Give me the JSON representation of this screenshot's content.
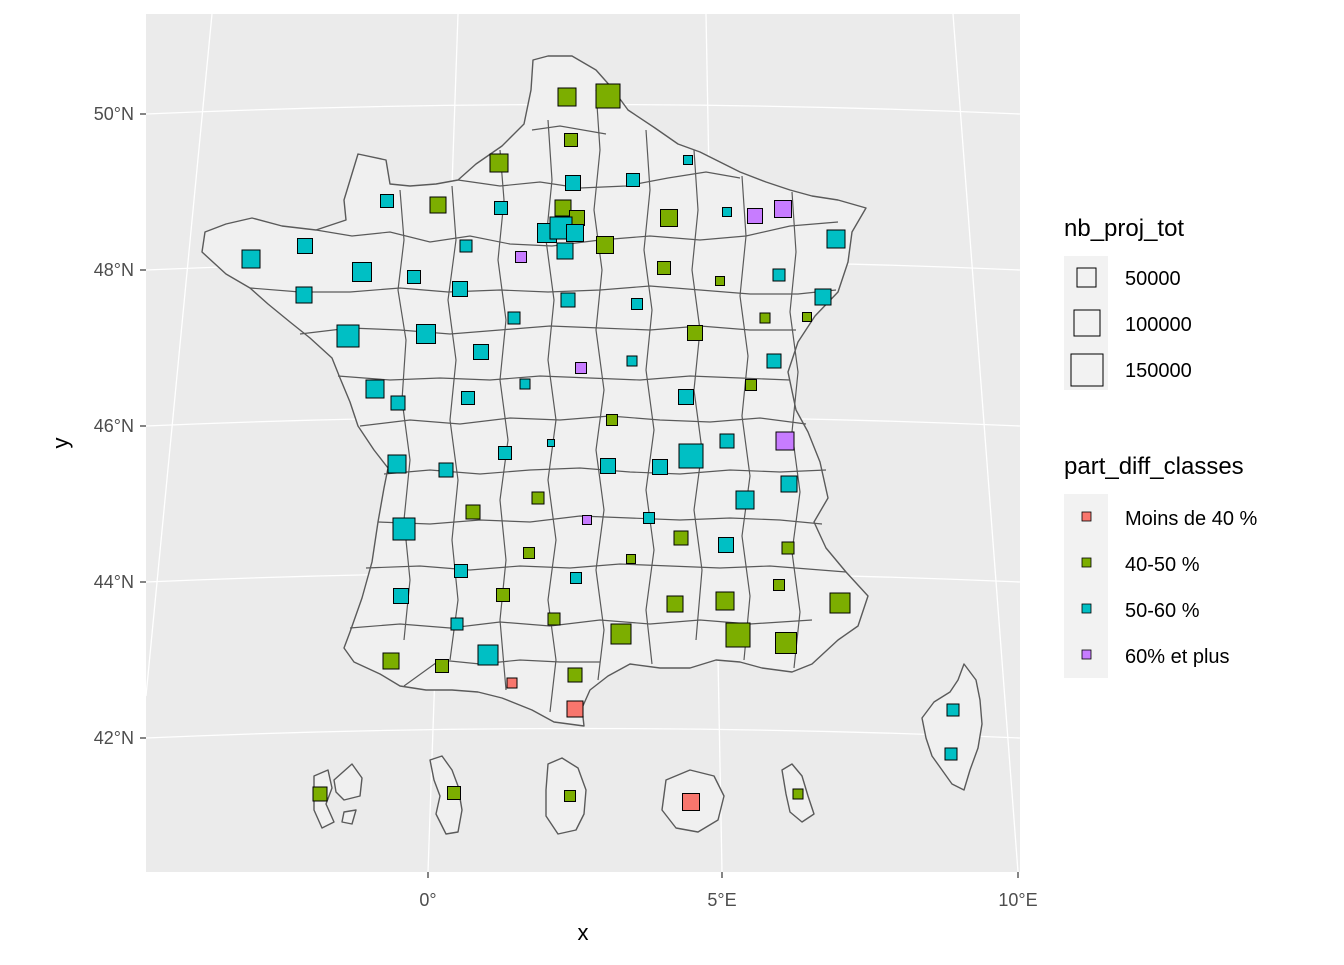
{
  "map": {
    "xlabel": "x",
    "ylabel": "y",
    "lat_ticks": [
      "50°N",
      "48°N",
      "46°N",
      "44°N",
      "42°N"
    ],
    "lon_ticks": [
      "0°",
      "5°E",
      "10°E"
    ],
    "colors": {
      "panel": "#ebebeb",
      "grid": "#ffffff",
      "land": "#f0f0f0",
      "border": "#5a5a5a",
      "Moins de 40 %": "#F8766D",
      "40-50 %": "#7CAE00",
      "50-60 %": "#00BFC4",
      "60% et plus": "#C77CFF"
    }
  },
  "legend_size": {
    "title": "nb_proj_tot",
    "labels": [
      "50000",
      "100000",
      "150000"
    ]
  },
  "legend_fill": {
    "title": "part_diff_classes",
    "labels": [
      "Moins de 40 %",
      "40-50 %",
      "50-60 %",
      "60% et plus"
    ]
  }
}
